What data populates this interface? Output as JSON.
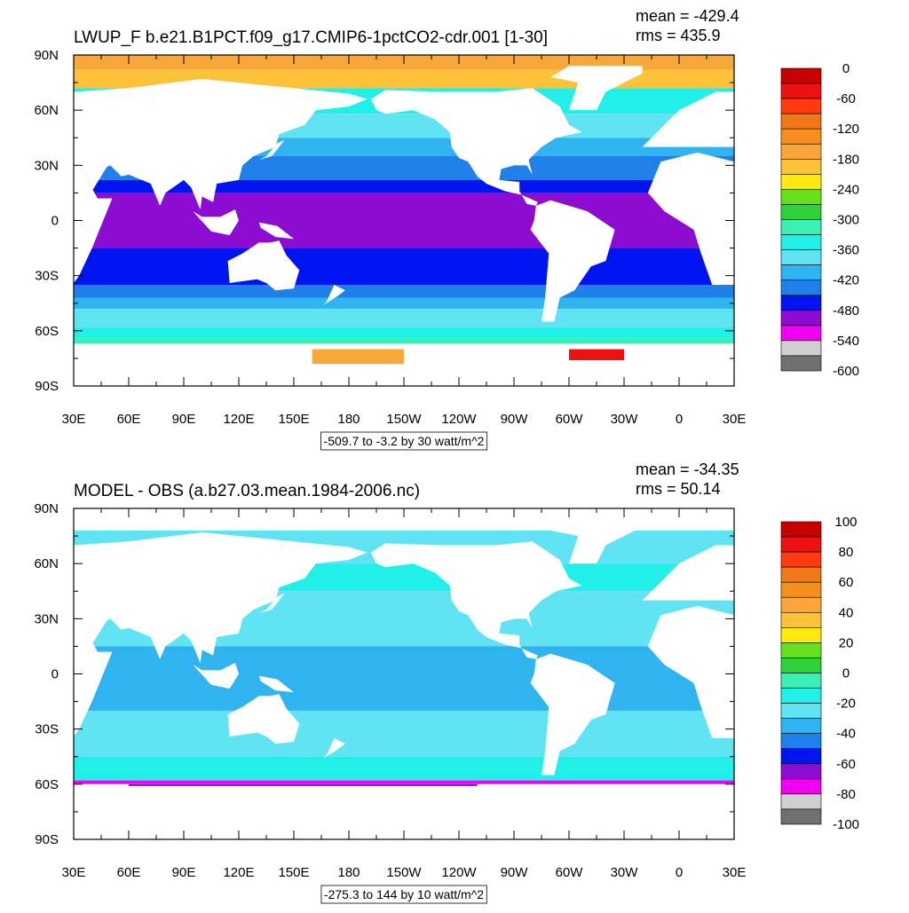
{
  "panels": [
    {
      "title": "LWUP_F b.e21.B1PCT.f09_g17.CMIP6-1pctCO2-cdr.001 [1-30]",
      "mean": "mean = -429.4",
      "rms": "rms = 435.9",
      "lat_labels": [
        "90N",
        "60N",
        "30N",
        "0",
        "30S",
        "60S",
        "90S"
      ],
      "lon_labels": [
        "30E",
        "60E",
        "90E",
        "120E",
        "150E",
        "180",
        "150W",
        "120W",
        "90W",
        "60W",
        "30W",
        "0",
        "30E"
      ],
      "range_note": "-509.7 to -3.2 by 30 watt/m^2",
      "colorbar": {
        "labels": [
          0,
          -60,
          -120,
          -180,
          -240,
          -300,
          -360,
          -420,
          -480,
          -540,
          -600
        ],
        "colors": [
          "#c80000",
          "#ee1111",
          "#ff3a10",
          "#f07818",
          "#f5901f",
          "#fba63a",
          "#fcc23a",
          "#ffea10",
          "#66e01a",
          "#2ed33a",
          "#3bf0b4",
          "#20f0e8",
          "#60e4f4",
          "#30b4f0",
          "#1e80e8",
          "#0014f0",
          "#8c0cd2",
          "#f000f0",
          "#d0d0d0",
          "#707070"
        ]
      }
    },
    {
      "title": "MODEL - OBS (a.b27.03.mean.1984-2006.nc)",
      "mean": "mean = -34.35",
      "rms": "rms = 50.14",
      "lat_labels": [
        "90N",
        "60N",
        "30N",
        "0",
        "30S",
        "60S",
        "90S"
      ],
      "lon_labels": [
        "30E",
        "60E",
        "90E",
        "120E",
        "150E",
        "180",
        "150W",
        "120W",
        "90W",
        "60W",
        "30W",
        "0",
        "30E"
      ],
      "range_note": "-275.3 to 144 by 10 watt/m^2",
      "colorbar": {
        "labels": [
          100,
          80,
          60,
          40,
          20,
          0,
          -20,
          -40,
          -60,
          -80,
          -100
        ],
        "colors": [
          "#c80000",
          "#ee1111",
          "#ff3a10",
          "#f07818",
          "#f5901f",
          "#fba63a",
          "#fcc23a",
          "#ffea10",
          "#66e01a",
          "#2ed33a",
          "#3bf0b4",
          "#20f0e8",
          "#60e4f4",
          "#30b4f0",
          "#1e80e8",
          "#0014f0",
          "#8c0cd2",
          "#f000f0",
          "#d0d0d0",
          "#707070"
        ]
      }
    }
  ]
}
